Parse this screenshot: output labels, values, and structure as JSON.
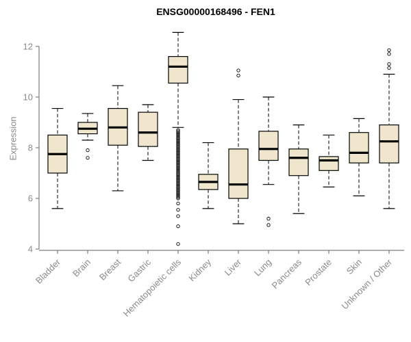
{
  "chart_data": {
    "type": "boxplot",
    "title": "ENSG00000168496 - FEN1",
    "xlabel": "",
    "ylabel": "Expression",
    "ylim": [
      3.95,
      12.75
    ],
    "yticks": [
      4,
      6,
      8,
      10,
      12
    ],
    "grid": false,
    "legend": "none",
    "box_fill": "#EFE6CD",
    "box_stroke": "#000000",
    "axis_color": "#7d7d7d",
    "tick_label_color": "#8a8a8a",
    "categories": [
      "Bladder",
      "Brain",
      "Breast",
      "Gastric",
      "Hematopoietic cells",
      "Kidney",
      "Liver",
      "Lung",
      "Pancreas",
      "Prostate",
      "Skin",
      "Unknown / Other"
    ],
    "boxes": [
      {
        "category": "Bladder",
        "low": 5.6,
        "q1": 7.0,
        "median": 7.75,
        "q3": 8.5,
        "high": 9.55,
        "outliers": []
      },
      {
        "category": "Brain",
        "low": 8.3,
        "q1": 8.55,
        "median": 8.75,
        "q3": 9.0,
        "high": 9.35,
        "outliers": [
          7.9,
          7.6
        ]
      },
      {
        "category": "Breast",
        "low": 6.3,
        "q1": 8.1,
        "median": 8.8,
        "q3": 9.55,
        "high": 10.45,
        "outliers": []
      },
      {
        "category": "Gastric",
        "low": 7.5,
        "q1": 8.05,
        "median": 8.6,
        "q3": 9.4,
        "high": 9.7,
        "outliers": []
      },
      {
        "category": "Hematopoietic cells",
        "low": 8.8,
        "q1": 10.55,
        "median": 11.2,
        "q3": 11.6,
        "high": 12.55,
        "outliers": [
          8.7,
          8.65,
          8.6,
          8.55,
          8.5,
          8.45,
          8.4,
          8.35,
          8.3,
          8.25,
          8.2,
          8.15,
          8.1,
          8.05,
          8.0,
          7.95,
          7.9,
          7.85,
          7.8,
          7.75,
          7.7,
          7.65,
          7.6,
          7.55,
          7.5,
          7.45,
          7.4,
          7.35,
          7.3,
          7.25,
          7.2,
          7.15,
          7.1,
          7.05,
          7.0,
          6.95,
          6.9,
          6.85,
          6.8,
          6.75,
          6.7,
          6.65,
          6.6,
          6.55,
          6.5,
          6.45,
          6.4,
          6.35,
          6.3,
          6.25,
          6.2,
          6.15,
          6.1,
          6.05,
          6.0,
          5.8,
          5.55,
          5.3,
          4.9,
          4.2
        ]
      },
      {
        "category": "Kidney",
        "low": 5.6,
        "q1": 6.35,
        "median": 6.65,
        "q3": 6.95,
        "high": 8.2,
        "outliers": []
      },
      {
        "category": "Liver",
        "low": 5.0,
        "q1": 6.0,
        "median": 6.55,
        "q3": 7.95,
        "high": 9.9,
        "outliers": [
          11.05,
          10.85
        ]
      },
      {
        "category": "Lung",
        "low": 6.55,
        "q1": 7.5,
        "median": 7.95,
        "q3": 8.65,
        "high": 10.0,
        "outliers": [
          5.2,
          4.95
        ]
      },
      {
        "category": "Pancreas",
        "low": 5.4,
        "q1": 6.9,
        "median": 7.6,
        "q3": 7.95,
        "high": 8.9,
        "outliers": []
      },
      {
        "category": "Prostate",
        "low": 6.45,
        "q1": 7.1,
        "median": 7.5,
        "q3": 7.65,
        "high": 8.5,
        "outliers": []
      },
      {
        "category": "Skin",
        "low": 6.1,
        "q1": 7.4,
        "median": 7.8,
        "q3": 8.6,
        "high": 9.15,
        "outliers": []
      },
      {
        "category": "Unknown / Other",
        "low": 5.6,
        "q1": 7.4,
        "median": 8.25,
        "q3": 8.9,
        "high": 10.9,
        "outliers": [
          11.85,
          11.7,
          11.3,
          11.15
        ]
      }
    ]
  }
}
